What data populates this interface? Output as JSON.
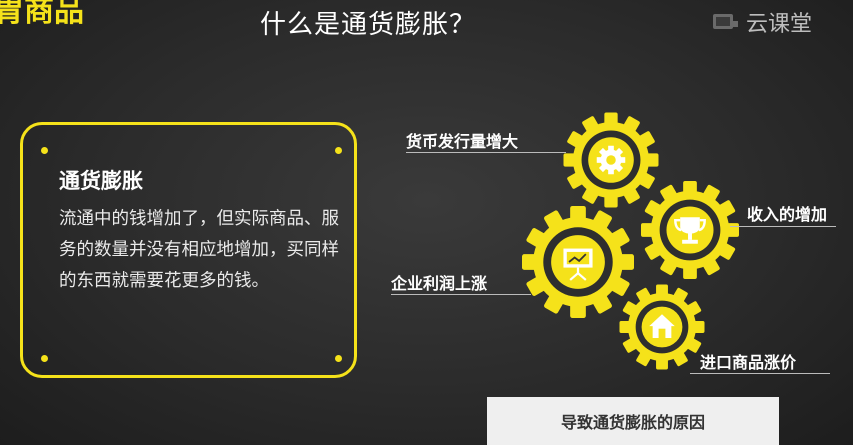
{
  "header": {
    "corner_tag": "胃商品",
    "title": "什么是通货膨胀？",
    "brand": "云课堂"
  },
  "definition_card": {
    "title": "通货膨胀",
    "body": "流通中的钱增加了，但实际商品、服务的数量并没有相应地增加，买同样的东西就需要花更多的钱。"
  },
  "causes": [
    {
      "label": "货币发行量增大",
      "icon": "gear-icon"
    },
    {
      "label": "收入的增加",
      "icon": "trophy-icon"
    },
    {
      "label": "企业利润上涨",
      "icon": "presentation-board-icon"
    },
    {
      "label": "进口商品涨价",
      "icon": "house-icon"
    }
  ],
  "caption": "导致通货膨胀的原因",
  "colors": {
    "accent": "#f5e21a",
    "background": "#2b2b2b",
    "text": "#ffffff"
  }
}
